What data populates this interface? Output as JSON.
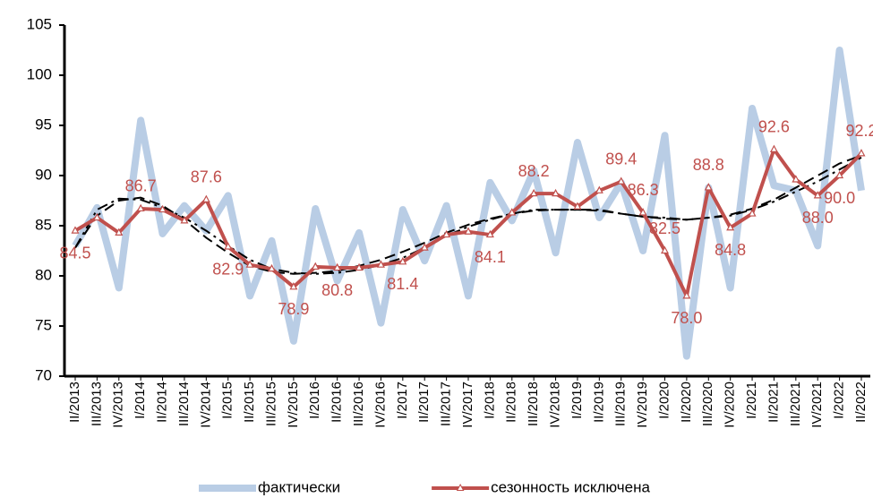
{
  "chart_data": {
    "type": "line",
    "categories": [
      "II/2013",
      "III/2013",
      "IV/2013",
      "I/2014",
      "II/2014",
      "III/2014",
      "IV/2014",
      "I/2015",
      "II/2015",
      "III/2015",
      "IV/2015",
      "I/2016",
      "II/2016",
      "III/2016",
      "IV/2016",
      "I/2017",
      "II/2017",
      "III/2017",
      "IV/2017",
      "I/2018",
      "II/2018",
      "III/2018",
      "IV/2018",
      "I/2019",
      "II/2019",
      "III/2019",
      "IV/2019",
      "I/2020",
      "II/2020",
      "III/2020",
      "IV/2020",
      "I/2021",
      "II/2021",
      "III/2021",
      "IV/2021",
      "I/2022",
      "II/2022"
    ],
    "series": [
      {
        "name": "фактически",
        "color": "#b9cde5",
        "width": 8,
        "values": [
          83.0,
          86.8,
          78.8,
          95.5,
          84.2,
          87.0,
          84.5,
          88.0,
          78.0,
          83.5,
          73.5,
          86.7,
          79.5,
          84.3,
          75.3,
          86.6,
          81.5,
          87.0,
          78.0,
          89.3,
          85.5,
          90.5,
          82.3,
          93.3,
          85.8,
          89.3,
          82.5,
          94.0,
          72.0,
          88.8,
          78.8,
          96.7,
          89.0,
          88.5,
          83.0,
          102.5,
          88.5
        ]
      },
      {
        "name": "сезонность исключена",
        "color": "#c0504d",
        "width": 4,
        "marker": "triangle",
        "values": [
          84.5,
          85.8,
          84.3,
          86.7,
          86.6,
          85.5,
          87.6,
          82.9,
          81.1,
          80.7,
          78.9,
          80.9,
          80.8,
          80.8,
          81.1,
          81.4,
          82.8,
          84.1,
          84.4,
          84.1,
          86.3,
          88.2,
          88.2,
          86.9,
          88.5,
          89.4,
          86.3,
          82.5,
          78.0,
          88.8,
          84.8,
          86.2,
          92.6,
          89.6,
          88.0,
          90.0,
          92.2
        ],
        "value_labels": [
          "84.5",
          null,
          null,
          "86.7",
          null,
          null,
          "87.6",
          "82.9",
          null,
          null,
          "78.9",
          null,
          "80.8",
          null,
          null,
          "81.4",
          null,
          null,
          null,
          "84.1",
          null,
          "88.2",
          null,
          null,
          null,
          "89.4",
          "86.3",
          "82.5",
          "78.0",
          "88.8",
          "84.8",
          null,
          "92.6",
          null,
          "88.0",
          "90.0",
          "92.2"
        ]
      },
      {
        "color": "#000000",
        "width": 2,
        "dash": "dash",
        "values": [
          82.8,
          86.0,
          87.5,
          87.8,
          87.0,
          85.6,
          83.8,
          82.3,
          81.0,
          80.4,
          80.2,
          80.3,
          80.5,
          81.0,
          81.6,
          82.4,
          83.3,
          84.3,
          85.1,
          85.7,
          86.2,
          86.5,
          86.6,
          86.6,
          86.5,
          86.2,
          85.9,
          85.7,
          85.6,
          85.8,
          86.1,
          86.7,
          87.6,
          88.8,
          90.0,
          91.2,
          92.0
        ]
      },
      {
        "color": "#000000",
        "width": 2,
        "dash": "dashdot",
        "values": [
          82.8,
          86.6,
          87.7,
          87.6,
          86.8,
          85.8,
          84.5,
          83.0,
          81.6,
          80.7,
          80.3,
          80.2,
          80.3,
          80.6,
          81.1,
          81.8,
          82.8,
          84.0,
          84.9,
          85.6,
          86.2,
          86.6,
          86.6,
          86.6,
          86.6,
          86.2,
          85.9,
          85.8,
          85.6,
          85.8,
          86.0,
          86.6,
          87.4,
          88.4,
          89.4,
          90.6,
          91.8
        ]
      }
    ],
    "ylim": [
      70,
      105
    ],
    "yticks": [
      70,
      75,
      80,
      85,
      90,
      95,
      100,
      105
    ],
    "grid": false,
    "legend": "bottom"
  }
}
